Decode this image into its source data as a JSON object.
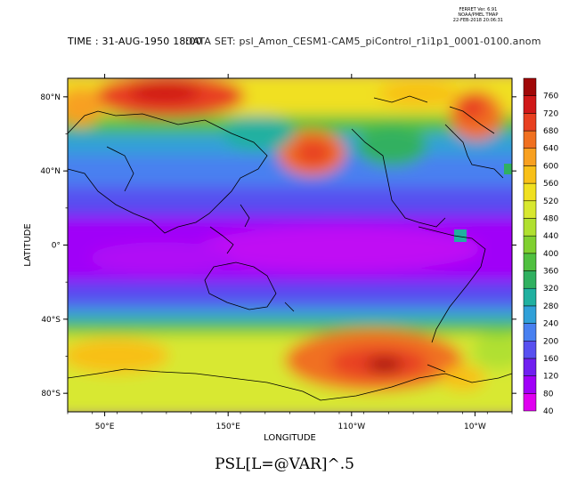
{
  "header": {
    "ferret_stamp": [
      "FERRET Ver. 6.91",
      "NOAA/PMEL TMAP",
      "22-FEB-2018 20:06:31"
    ],
    "title_time": "TIME : 31-AUG-1950 18:00",
    "title_overlap": "DATA SET: psl_Amon_CESM1-CAM5_piControl_r1i1p1_0001-0100.anom"
  },
  "map": {
    "xlabel": "LONGITUDE",
    "ylabel": "LATITUDE",
    "lon_ticks": [
      {
        "label": "50°E",
        "lon": 50
      },
      {
        "label": "150°E",
        "lon": 150
      },
      {
        "label": "110°W",
        "lon": 250
      },
      {
        "label": "10°W",
        "lon": 350
      }
    ],
    "lat_ticks": [
      {
        "label": "80°N",
        "lat": 80
      },
      {
        "label": "40°N",
        "lat": 40
      },
      {
        "label": "0°",
        "lat": 0
      },
      {
        "label": "40°S",
        "lat": -40
      },
      {
        "label": "80°S",
        "lat": -80
      }
    ],
    "lon_range": [
      20,
      380
    ],
    "lat_range": [
      -90,
      90
    ]
  },
  "colorbar": {
    "levels": [
      40,
      80,
      120,
      160,
      200,
      240,
      280,
      320,
      360,
      400,
      440,
      480,
      520,
      560,
      600,
      640,
      680,
      720,
      760
    ],
    "colors": [
      "#e000f0",
      "#a000f8",
      "#7020f0",
      "#5850f0",
      "#4880f0",
      "#30a0d8",
      "#20b0a0",
      "#30b060",
      "#50c040",
      "#80d030",
      "#b0e030",
      "#d8e830",
      "#f0e020",
      "#f8c018",
      "#f8a020",
      "#f07020",
      "#e84020",
      "#d01818",
      "#a00808"
    ]
  },
  "chart_data": {
    "type": "heatmap",
    "variable": "PSL[L=@VAR]^.5",
    "x_label": "LONGITUDE",
    "y_label": "LATITUDE",
    "units_levels": [
      40,
      80,
      120,
      160,
      200,
      240,
      280,
      320,
      360,
      400,
      440,
      480,
      520,
      560,
      600,
      640,
      680,
      720,
      760
    ]
  },
  "footer": {
    "variable_title": "PSL[L=@VAR]^.5"
  }
}
